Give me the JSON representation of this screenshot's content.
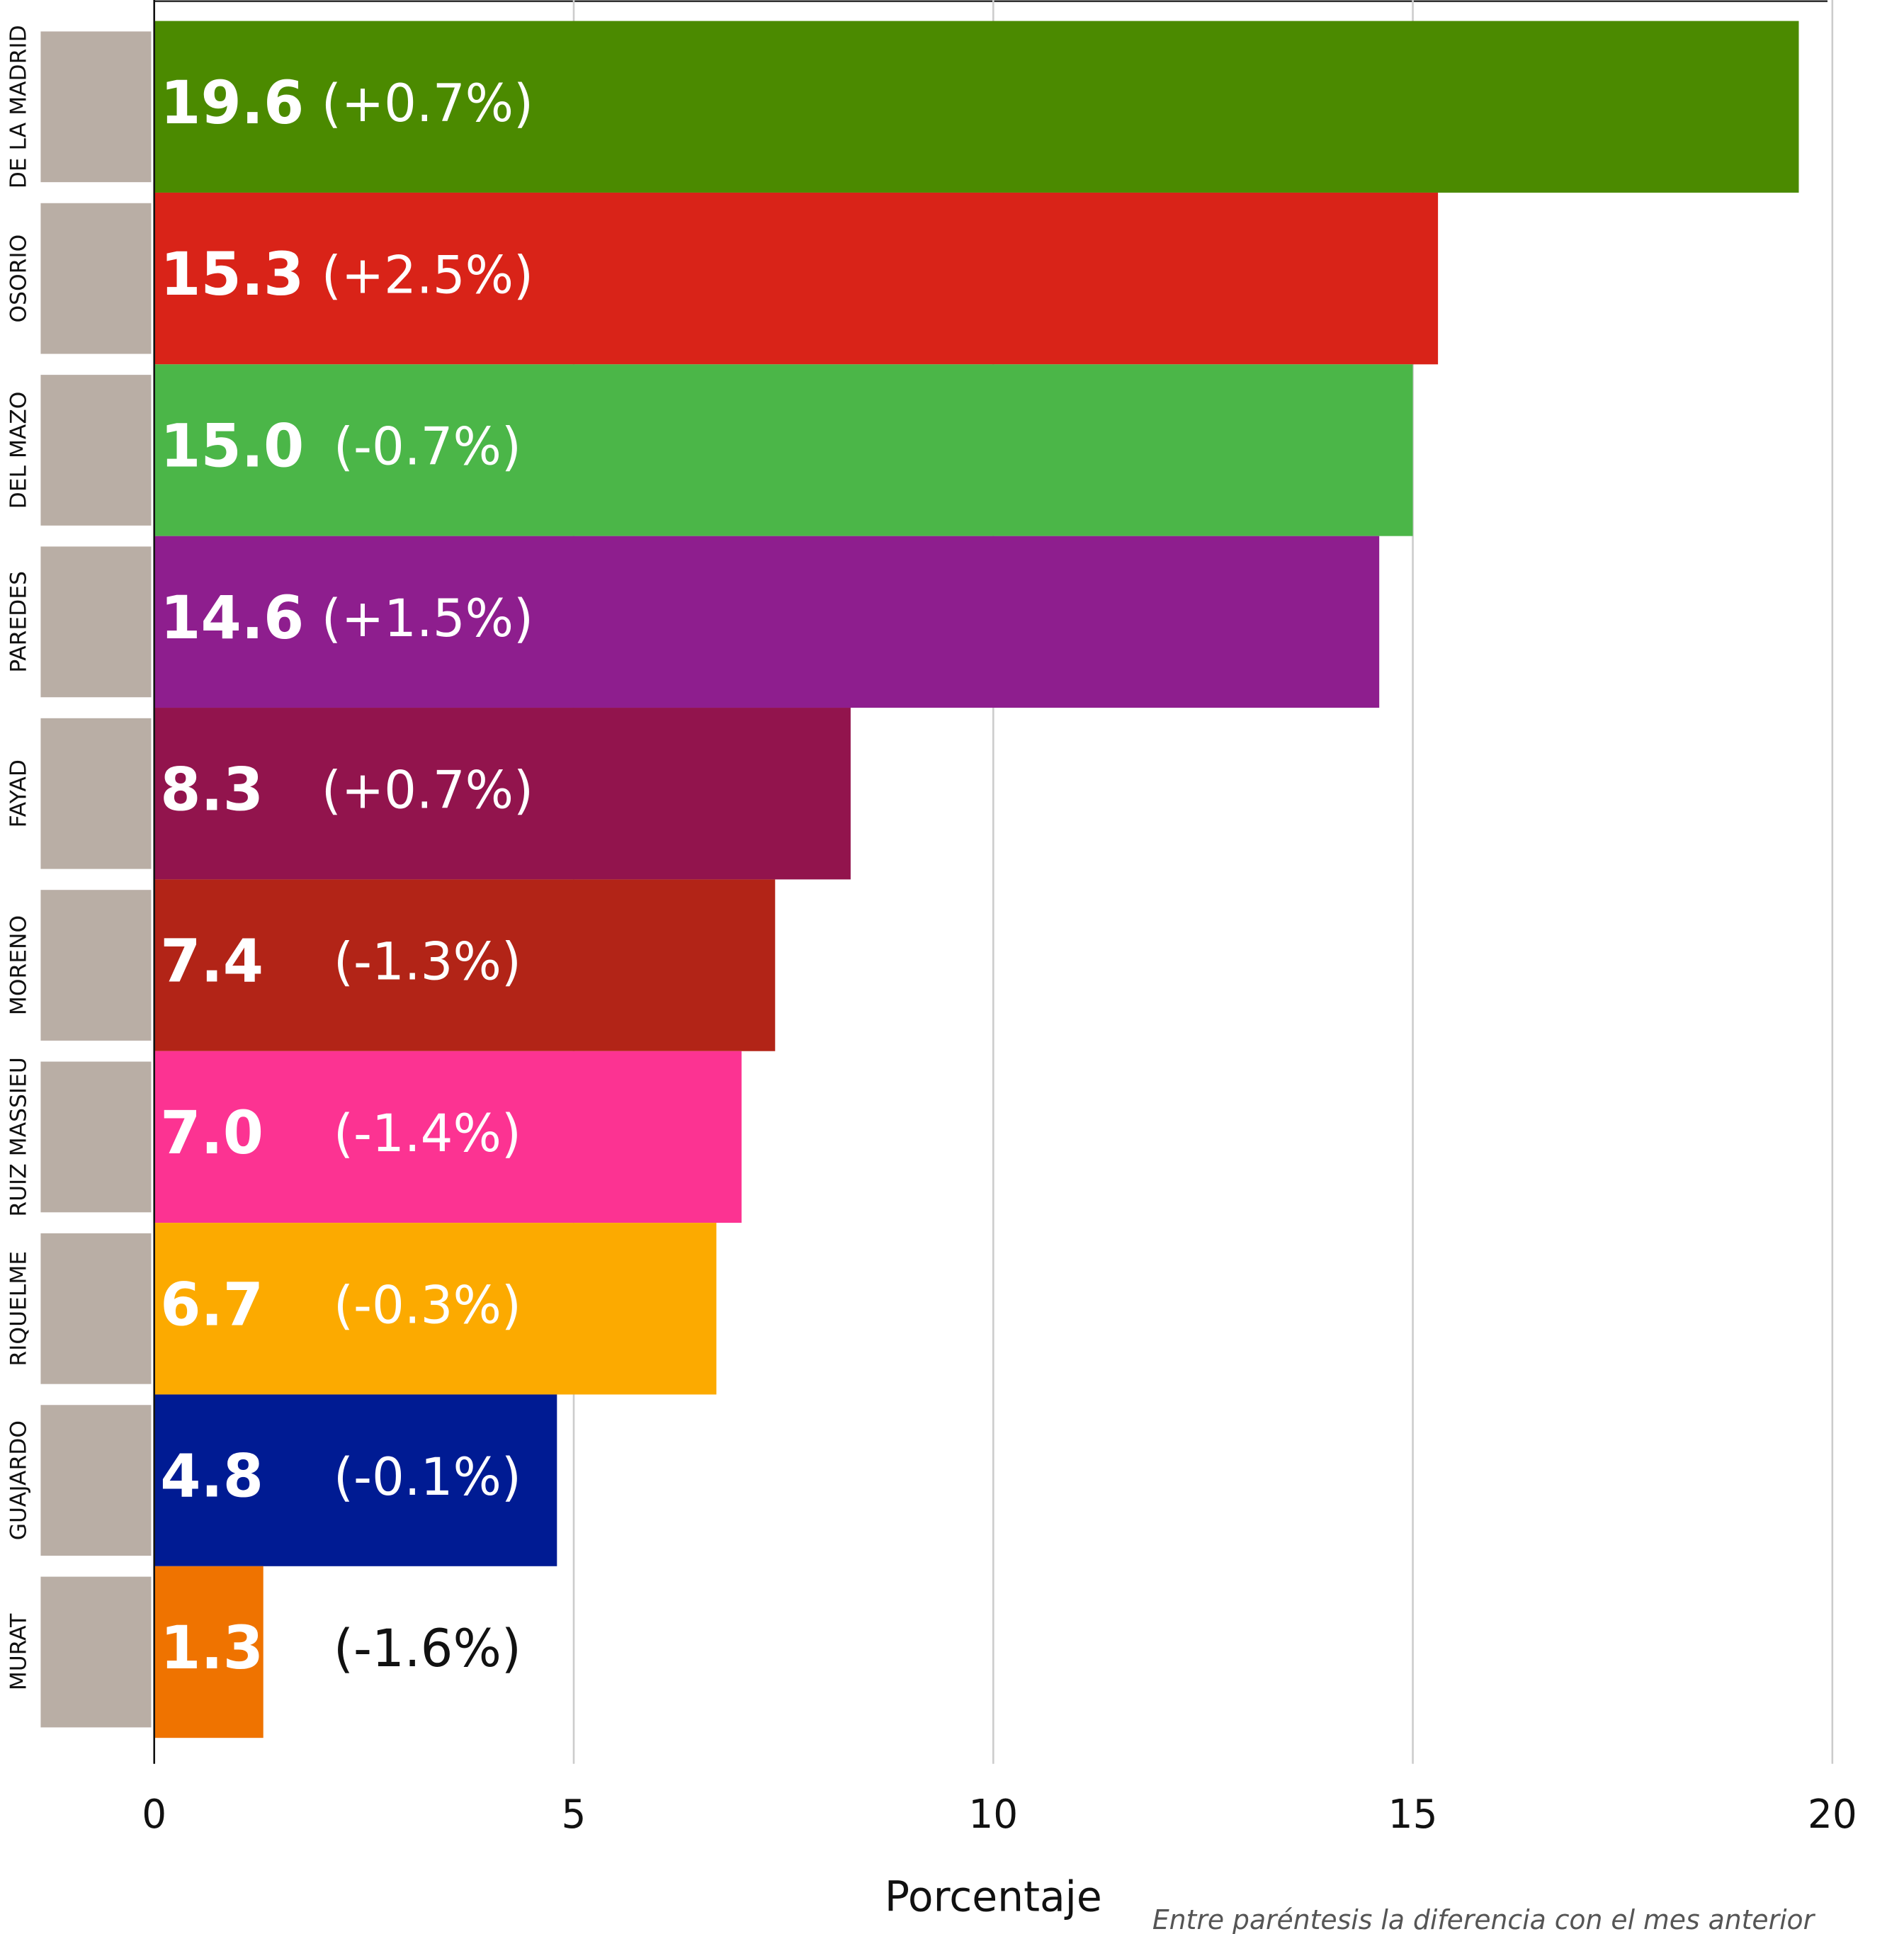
{
  "chart_data": {
    "type": "barh",
    "categories": [
      "DE LA MADRID",
      "OSORIO",
      "DEL MAZO",
      "PAREDES",
      "FAYAD",
      "MORENO",
      "RUIZ MASSIEU",
      "RIQUELME",
      "GUAJARDO",
      "MURAT"
    ],
    "values": [
      19.6,
      15.3,
      15.0,
      14.6,
      8.3,
      7.4,
      7.0,
      6.7,
      4.8,
      1.3
    ],
    "value_labels": [
      "19.6",
      "15.3",
      "15.0",
      "14.6",
      "8.3",
      "7.4",
      "7.0",
      "6.7",
      "4.8",
      "1.3"
    ],
    "changes": [
      "(+0.7%)",
      "(+2.5%)",
      "(-0.7%)",
      "(+1.5%)",
      "(+0.7%)",
      "(-1.3%)",
      "(-1.4%)",
      "(-0.3%)",
      "(-0.1%)",
      "(-1.6%)"
    ],
    "colors": [
      "#4b8a00",
      "#d92318",
      "#4bb648",
      "#8e1e8e",
      "#92144d",
      "#b22417",
      "#fc3392",
      "#fcaa00",
      "#001b93",
      "#ef7300"
    ],
    "xlim": [
      0,
      20
    ],
    "xticks": [
      0,
      5,
      10,
      15,
      20
    ],
    "grid": true,
    "xlabel": "Porcentaje",
    "note": "Entre paréntesis la diferencia con el mes anterior"
  }
}
